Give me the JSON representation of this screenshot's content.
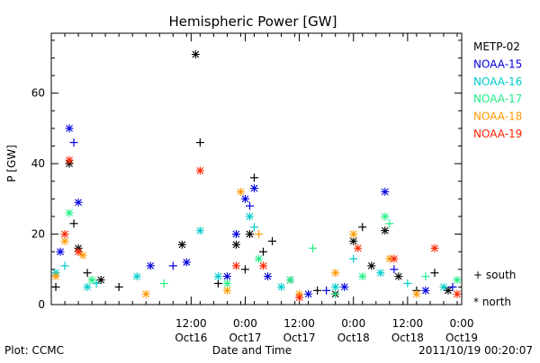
{
  "chart_data": {
    "type": "scatter",
    "title": "Hemispheric Power [GW]",
    "ylabel": "P [GW]",
    "xlabel": "Date and Time",
    "ylim": [
      0,
      77
    ],
    "yticks": [
      0,
      20,
      40,
      60
    ],
    "x_range": [
      "2011-10-15 05:00",
      "2011-10-19 00:00"
    ],
    "x_ticks": [
      {
        "time": "2011-10-16 12:00",
        "l1": "12:00",
        "l2": "Oct16"
      },
      {
        "time": "2011-10-17 00:00",
        "l1": "0:00",
        "l2": "Oct17"
      },
      {
        "time": "2011-10-17 12:00",
        "l1": "12:00",
        "l2": "Oct17"
      },
      {
        "time": "2011-10-18 00:00",
        "l1": "0:00",
        "l2": "Oct18"
      },
      {
        "time": "2011-10-18 12:00",
        "l1": "12:00",
        "l2": "Oct18"
      },
      {
        "time": "2011-10-19 00:00",
        "l1": "0:00",
        "l2": "Oct19"
      }
    ],
    "hemispheres": [
      {
        "label": "+ south",
        "marker": "+"
      },
      {
        "label": "* north",
        "marker": "*"
      }
    ],
    "series": [
      {
        "name": "METP-02",
        "color": "#000000",
        "points": [
          {
            "t": "2011-10-15 06:00",
            "v": 5,
            "h": "s"
          },
          {
            "t": "2011-10-15 09:00",
            "v": 40,
            "h": "n"
          },
          {
            "t": "2011-10-15 10:00",
            "v": 23,
            "h": "s"
          },
          {
            "t": "2011-10-15 11:00",
            "v": 16,
            "h": "n"
          },
          {
            "t": "2011-10-15 13:00",
            "v": 9,
            "h": "s"
          },
          {
            "t": "2011-10-15 16:00",
            "v": 7,
            "h": "n"
          },
          {
            "t": "2011-10-15 20:00",
            "v": 5,
            "h": "s"
          },
          {
            "t": "2011-10-16 10:00",
            "v": 17,
            "h": "n"
          },
          {
            "t": "2011-10-16 13:00",
            "v": 71,
            "h": "n"
          },
          {
            "t": "2011-10-16 14:00",
            "v": 46,
            "h": "s"
          },
          {
            "t": "2011-10-16 18:00",
            "v": 6,
            "h": "s"
          },
          {
            "t": "2011-10-16 22:00",
            "v": 17,
            "h": "n"
          },
          {
            "t": "2011-10-17 00:00",
            "v": 10,
            "h": "s"
          },
          {
            "t": "2011-10-17 01:00",
            "v": 20,
            "h": "n"
          },
          {
            "t": "2011-10-17 02:00",
            "v": 36,
            "h": "s"
          },
          {
            "t": "2011-10-17 04:00",
            "v": 15,
            "h": "s"
          },
          {
            "t": "2011-10-17 06:00",
            "v": 18,
            "h": "s"
          },
          {
            "t": "2011-10-17 10:00",
            "v": 7,
            "h": "n"
          },
          {
            "t": "2011-10-17 16:00",
            "v": 4,
            "h": "s"
          },
          {
            "t": "2011-10-17 20:00",
            "v": 3,
            "h": "n"
          },
          {
            "t": "2011-10-18 00:00",
            "v": 18,
            "h": "n"
          },
          {
            "t": "2011-10-18 02:00",
            "v": 22,
            "h": "s"
          },
          {
            "t": "2011-10-18 04:00",
            "v": 11,
            "h": "n"
          },
          {
            "t": "2011-10-18 07:00",
            "v": 21,
            "h": "n"
          },
          {
            "t": "2011-10-18 10:00",
            "v": 8,
            "h": "n"
          },
          {
            "t": "2011-10-18 14:00",
            "v": 4,
            "h": "s"
          },
          {
            "t": "2011-10-18 18:00",
            "v": 9,
            "h": "s"
          },
          {
            "t": "2011-10-18 21:00",
            "v": 4,
            "h": "n"
          }
        ]
      },
      {
        "name": "NOAA-15",
        "color": "#0000dd",
        "points": [
          {
            "t": "2011-10-15 07:00",
            "v": 15,
            "h": "n"
          },
          {
            "t": "2011-10-15 09:00",
            "v": 50,
            "h": "n"
          },
          {
            "t": "2011-10-15 10:00",
            "v": 46,
            "h": "s"
          },
          {
            "t": "2011-10-15 11:00",
            "v": 29,
            "h": "n"
          },
          {
            "t": "2011-10-16 03:00",
            "v": 11,
            "h": "n"
          },
          {
            "t": "2011-10-16 08:00",
            "v": 11,
            "h": "s"
          },
          {
            "t": "2011-10-16 11:00",
            "v": 12,
            "h": "n"
          },
          {
            "t": "2011-10-16 20:00",
            "v": 8,
            "h": "n"
          },
          {
            "t": "2011-10-16 22:00",
            "v": 20,
            "h": "n"
          },
          {
            "t": "2011-10-17 00:00",
            "v": 30,
            "h": "n"
          },
          {
            "t": "2011-10-17 01:00",
            "v": 28,
            "h": "s"
          },
          {
            "t": "2011-10-17 02:00",
            "v": 33,
            "h": "n"
          },
          {
            "t": "2011-10-17 05:00",
            "v": 8,
            "h": "n"
          },
          {
            "t": "2011-10-17 14:00",
            "v": 3,
            "h": "n"
          },
          {
            "t": "2011-10-17 18:00",
            "v": 4,
            "h": "s"
          },
          {
            "t": "2011-10-17 22:00",
            "v": 5,
            "h": "n"
          },
          {
            "t": "2011-10-18 07:00",
            "v": 32,
            "h": "n"
          },
          {
            "t": "2011-10-18 09:00",
            "v": 10,
            "h": "s"
          },
          {
            "t": "2011-10-18 16:00",
            "v": 4,
            "h": "n"
          },
          {
            "t": "2011-10-18 22:00",
            "v": 5,
            "h": "s"
          }
        ]
      },
      {
        "name": "NOAA-16",
        "color": "#00cccc",
        "points": [
          {
            "t": "2011-10-15 06:00",
            "v": 9,
            "h": "n"
          },
          {
            "t": "2011-10-15 08:00",
            "v": 11,
            "h": "s"
          },
          {
            "t": "2011-10-15 13:00",
            "v": 5,
            "h": "n"
          },
          {
            "t": "2011-10-15 15:00",
            "v": 6,
            "h": "s"
          },
          {
            "t": "2011-10-16 00:00",
            "v": 8,
            "h": "n"
          },
          {
            "t": "2011-10-16 14:00",
            "v": 21,
            "h": "n"
          },
          {
            "t": "2011-10-16 18:00",
            "v": 8,
            "h": "n"
          },
          {
            "t": "2011-10-17 01:00",
            "v": 25,
            "h": "n"
          },
          {
            "t": "2011-10-17 02:00",
            "v": 22,
            "h": "s"
          },
          {
            "t": "2011-10-17 08:00",
            "v": 5,
            "h": "n"
          },
          {
            "t": "2011-10-17 20:00",
            "v": 5,
            "h": "n"
          },
          {
            "t": "2011-10-18 00:00",
            "v": 13,
            "h": "s"
          },
          {
            "t": "2011-10-18 06:00",
            "v": 9,
            "h": "n"
          },
          {
            "t": "2011-10-18 12:00",
            "v": 6,
            "h": "s"
          },
          {
            "t": "2011-10-18 20:00",
            "v": 5,
            "h": "n"
          }
        ]
      },
      {
        "name": "NOAA-17",
        "color": "#22ee88",
        "points": [
          {
            "t": "2011-10-15 09:00",
            "v": 26,
            "h": "n"
          },
          {
            "t": "2011-10-15 14:00",
            "v": 7,
            "h": "n"
          },
          {
            "t": "2011-10-16 06:00",
            "v": 6,
            "h": "s"
          },
          {
            "t": "2011-10-16 20:00",
            "v": 6,
            "h": "n"
          },
          {
            "t": "2011-10-17 03:00",
            "v": 13,
            "h": "n"
          },
          {
            "t": "2011-10-17 10:00",
            "v": 7,
            "h": "n"
          },
          {
            "t": "2011-10-17 15:00",
            "v": 16,
            "h": "s"
          },
          {
            "t": "2011-10-17 20:00",
            "v": 3,
            "h": "s"
          },
          {
            "t": "2011-10-18 02:00",
            "v": 8,
            "h": "n"
          },
          {
            "t": "2011-10-18 07:00",
            "v": 25,
            "h": "n"
          },
          {
            "t": "2011-10-18 08:00",
            "v": 23,
            "h": "s"
          },
          {
            "t": "2011-10-18 16:00",
            "v": 8,
            "h": "s"
          },
          {
            "t": "2011-10-18 23:00",
            "v": 7,
            "h": "n"
          }
        ]
      },
      {
        "name": "NOAA-18",
        "color": "#ff9900",
        "points": [
          {
            "t": "2011-10-15 06:00",
            "v": 8,
            "h": "n"
          },
          {
            "t": "2011-10-15 08:00",
            "v": 18,
            "h": "n"
          },
          {
            "t": "2011-10-15 12:00",
            "v": 14,
            "h": "n"
          },
          {
            "t": "2011-10-16 02:00",
            "v": 3,
            "h": "n"
          },
          {
            "t": "2011-10-16 20:00",
            "v": 4,
            "h": "n"
          },
          {
            "t": "2011-10-16 23:00",
            "v": 32,
            "h": "n"
          },
          {
            "t": "2011-10-17 03:00",
            "v": 20,
            "h": "s"
          },
          {
            "t": "2011-10-17 12:00",
            "v": 3,
            "h": "n"
          },
          {
            "t": "2011-10-17 20:00",
            "v": 9,
            "h": "n"
          },
          {
            "t": "2011-10-18 00:00",
            "v": 20,
            "h": "n"
          },
          {
            "t": "2011-10-18 08:00",
            "v": 13,
            "h": "n"
          },
          {
            "t": "2011-10-18 14:00",
            "v": 3,
            "h": "n"
          }
        ]
      },
      {
        "name": "NOAA-19",
        "color": "#ff2200",
        "points": [
          {
            "t": "2011-10-15 08:00",
            "v": 20,
            "h": "n"
          },
          {
            "t": "2011-10-15 09:00",
            "v": 41,
            "h": "n"
          },
          {
            "t": "2011-10-15 11:00",
            "v": 15,
            "h": "n"
          },
          {
            "t": "2011-10-16 14:00",
            "v": 38,
            "h": "n"
          },
          {
            "t": "2011-10-16 22:00",
            "v": 11,
            "h": "n"
          },
          {
            "t": "2011-10-17 04:00",
            "v": 11,
            "h": "n"
          },
          {
            "t": "2011-10-17 12:00",
            "v": 2,
            "h": "n"
          },
          {
            "t": "2011-10-18 01:00",
            "v": 16,
            "h": "n"
          },
          {
            "t": "2011-10-18 09:00",
            "v": 13,
            "h": "n"
          },
          {
            "t": "2011-10-18 18:00",
            "v": 16,
            "h": "n"
          },
          {
            "t": "2011-10-18 23:00",
            "v": 3,
            "h": "n"
          }
        ]
      }
    ]
  },
  "footer": {
    "left": "Plot: CCMC",
    "right": "2011/10/19 00:20:07"
  }
}
